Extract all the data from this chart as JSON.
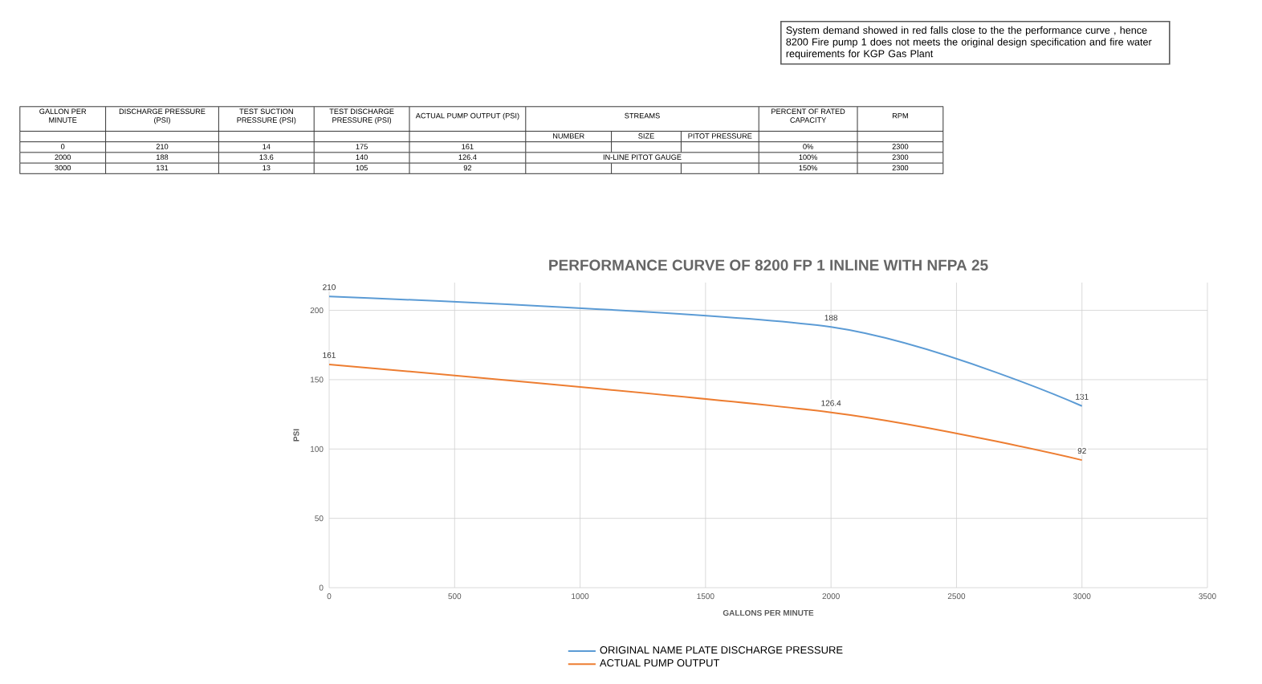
{
  "chart_data": {
    "type": "line",
    "title": "PERFORMANCE CURVE OF 8200 FP 1 INLINE WITH NFPA 25",
    "xlabel": "GALLONS PER MINUTE",
    "ylabel": "PSI",
    "x": [
      0,
      2000,
      3000
    ],
    "series": [
      {
        "name": "ORIGINAL NAME PLATE  DISCHARGE PRESSURE",
        "color": "#5b9bd5",
        "values": [
          210,
          188,
          131
        ]
      },
      {
        "name": "ACTUAL PUMP OUTPUT",
        "color": "#ed7d31",
        "values": [
          161,
          126.4,
          92
        ]
      }
    ],
    "xlim": [
      0,
      3500
    ],
    "xticks": [
      0,
      500,
      1000,
      1500,
      2000,
      2500,
      3000,
      3500
    ],
    "ylim": [
      0,
      220
    ],
    "yticks": [
      0,
      50,
      100,
      150,
      200
    ],
    "grid": true,
    "legend": "bottom",
    "data_labels": true,
    "marker": "none",
    "line_style": "solid",
    "annotations": [
      "System demand showed in red falls close to the  the performance curve , hence 8200 Fire pump 1 does not meets the original design specification and fire water requirements  for KGP Gas Plant",
      "GALLON PER MINUTE",
      "DISCHARGE PRESSURE (PSI)",
      "TEST  SUCTION PRESSURE (PSI)",
      "TEST DISCHARGE PRESSURE (PSI)",
      "ACTUAL PUMP OUTPUT (PSI)",
      "STREAMS",
      "PERCENT OF RATED CAPACITY",
      "RPM",
      "NUMBER",
      "SIZE",
      "PITOT PRESSURE",
      "0",
      "210",
      "14",
      "175",
      "161",
      "0%",
      "2300",
      "2000",
      "188",
      "13.6",
      "140",
      "126.4",
      "IN-LINE PITOT GAUGE",
      "100%",
      "2300",
      "3000",
      "131",
      "13",
      "105",
      "92",
      "150%",
      "2300"
    ]
  }
}
